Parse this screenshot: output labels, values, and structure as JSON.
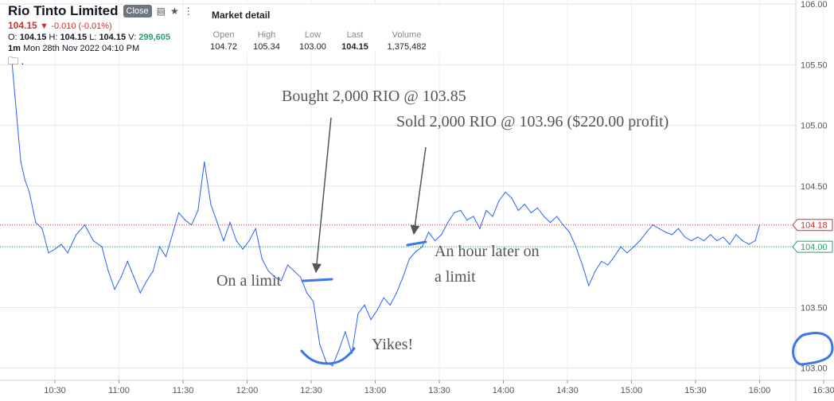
{
  "header": {
    "title": "Rio Tinto Limited",
    "close_label": "Close",
    "last_price": "104.15",
    "change": "-0.010 (-0.01%)",
    "open_label": "O:",
    "open": "104.15",
    "high_label": "H:",
    "high": "104.15",
    "low_label": "L:",
    "low": "104.15",
    "vol_label": "V:",
    "volume": "299,605",
    "interval": "1m",
    "datetime": "Mon 28th Nov 2022 04:10 PM",
    "folder_text": "."
  },
  "market_detail": {
    "title": "Market detail",
    "columns": [
      {
        "label": "Open",
        "value": "104.72"
      },
      {
        "label": "High",
        "value": "105.34"
      },
      {
        "label": "Low",
        "value": "103.00"
      },
      {
        "label": "Last",
        "value": "104.15"
      },
      {
        "label": "Volume",
        "value": "1,375,482"
      }
    ]
  },
  "annotations": {
    "bought": "Bought 2,000 RIO @ 103.85",
    "sold": "Sold 2,000 RIO @ 103.96 ($220.00 profit)",
    "on_limit": "On a limit",
    "hour_later_1": "An hour later on",
    "hour_later_2": "a limit",
    "yikes": "Yikes!"
  },
  "colors": {
    "line": "#2962ff",
    "red": "#d32f2f",
    "green": "#26a269",
    "marker": "#3b78e7"
  },
  "chart_data": {
    "type": "line",
    "x_ticks": [
      "10:30",
      "11:00",
      "11:30",
      "12:00",
      "12:30",
      "13:00",
      "13:30",
      "14:00",
      "14:30",
      "15:00",
      "15:30",
      "16:00",
      "16:30"
    ],
    "y_ticks": [
      "103.00",
      "103.50",
      "104.00",
      "104.50",
      "105.00",
      "105.50",
      "106.00"
    ],
    "ylim": [
      102.8,
      106.0
    ],
    "series": [
      {
        "values": [
          [
            "10:10",
            105.5
          ],
          [
            "10:12",
            105.1
          ],
          [
            "10:14",
            104.7
          ],
          [
            "10:16",
            104.55
          ],
          [
            "10:18",
            104.45
          ],
          [
            "10:21",
            104.2
          ],
          [
            "10:24",
            104.15
          ],
          [
            "10:27",
            103.95
          ],
          [
            "10:30",
            103.98
          ],
          [
            "10:33",
            104.02
          ],
          [
            "10:36",
            103.95
          ],
          [
            "10:40",
            104.1
          ],
          [
            "10:44",
            104.18
          ],
          [
            "10:48",
            104.05
          ],
          [
            "10:52",
            104.0
          ],
          [
            "10:55",
            103.8
          ],
          [
            "10:58",
            103.65
          ],
          [
            "11:01",
            103.75
          ],
          [
            "11:04",
            103.88
          ],
          [
            "11:07",
            103.75
          ],
          [
            "11:10",
            103.62
          ],
          [
            "11:13",
            103.72
          ],
          [
            "11:16",
            103.8
          ],
          [
            "11:19",
            104.0
          ],
          [
            "11:22",
            103.92
          ],
          [
            "11:25",
            104.1
          ],
          [
            "11:28",
            104.28
          ],
          [
            "11:31",
            104.22
          ],
          [
            "11:34",
            104.18
          ],
          [
            "11:37",
            104.3
          ],
          [
            "11:40",
            104.7
          ],
          [
            "11:43",
            104.35
          ],
          [
            "11:46",
            104.2
          ],
          [
            "11:49",
            104.05
          ],
          [
            "11:52",
            104.2
          ],
          [
            "11:55",
            104.05
          ],
          [
            "11:58",
            103.98
          ],
          [
            "12:01",
            104.05
          ],
          [
            "12:04",
            104.15
          ],
          [
            "12:07",
            103.9
          ],
          [
            "12:10",
            103.8
          ],
          [
            "12:13",
            103.75
          ],
          [
            "12:16",
            103.72
          ],
          [
            "12:19",
            103.85
          ],
          [
            "12:22",
            103.8
          ],
          [
            "12:25",
            103.75
          ],
          [
            "12:28",
            103.62
          ],
          [
            "12:31",
            103.55
          ],
          [
            "12:34",
            103.2
          ],
          [
            "12:37",
            103.05
          ],
          [
            "12:40",
            103.02
          ],
          [
            "12:43",
            103.15
          ],
          [
            "12:46",
            103.3
          ],
          [
            "12:49",
            103.12
          ],
          [
            "12:52",
            103.45
          ],
          [
            "12:55",
            103.52
          ],
          [
            "12:58",
            103.4
          ],
          [
            "13:01",
            103.48
          ],
          [
            "13:04",
            103.58
          ],
          [
            "13:07",
            103.52
          ],
          [
            "13:10",
            103.62
          ],
          [
            "13:13",
            103.75
          ],
          [
            "13:16",
            103.9
          ],
          [
            "13:19",
            103.96
          ],
          [
            "13:22",
            104.0
          ],
          [
            "13:25",
            104.12
          ],
          [
            "13:28",
            104.05
          ],
          [
            "13:31",
            104.1
          ],
          [
            "13:34",
            104.2
          ],
          [
            "13:37",
            104.28
          ],
          [
            "13:40",
            104.3
          ],
          [
            "13:43",
            104.22
          ],
          [
            "13:46",
            104.25
          ],
          [
            "13:49",
            104.15
          ],
          [
            "13:52",
            104.3
          ],
          [
            "13:55",
            104.25
          ],
          [
            "13:58",
            104.38
          ],
          [
            "14:01",
            104.45
          ],
          [
            "14:04",
            104.4
          ],
          [
            "14:07",
            104.3
          ],
          [
            "14:10",
            104.35
          ],
          [
            "14:13",
            104.28
          ],
          [
            "14:16",
            104.32
          ],
          [
            "14:19",
            104.25
          ],
          [
            "14:22",
            104.2
          ],
          [
            "14:25",
            104.25
          ],
          [
            "14:28",
            104.18
          ],
          [
            "14:31",
            104.12
          ],
          [
            "14:34",
            104.0
          ],
          [
            "14:37",
            103.85
          ],
          [
            "14:40",
            103.68
          ],
          [
            "14:43",
            103.8
          ],
          [
            "14:46",
            103.88
          ],
          [
            "14:49",
            103.85
          ],
          [
            "14:52",
            103.92
          ],
          [
            "14:55",
            104.0
          ],
          [
            "14:58",
            103.95
          ],
          [
            "15:01",
            104.0
          ],
          [
            "15:04",
            104.05
          ],
          [
            "15:07",
            104.12
          ],
          [
            "15:10",
            104.18
          ],
          [
            "15:13",
            104.15
          ],
          [
            "15:16",
            104.12
          ],
          [
            "15:19",
            104.1
          ],
          [
            "15:22",
            104.15
          ],
          [
            "15:25",
            104.08
          ],
          [
            "15:28",
            104.05
          ],
          [
            "15:31",
            104.08
          ],
          [
            "15:34",
            104.05
          ],
          [
            "15:37",
            104.1
          ],
          [
            "15:40",
            104.05
          ],
          [
            "15:43",
            104.08
          ],
          [
            "15:46",
            104.02
          ],
          [
            "15:49",
            104.1
          ],
          [
            "15:52",
            104.05
          ],
          [
            "15:55",
            104.02
          ],
          [
            "15:58",
            104.05
          ],
          [
            "16:00",
            104.18
          ]
        ]
      }
    ],
    "price_tags": [
      {
        "label": "104.18",
        "value": 104.18,
        "color": "#d32f2f"
      },
      {
        "label": "104.00",
        "value": 104.0,
        "color": "#26a269"
      }
    ],
    "grid": true,
    "legend": "none"
  }
}
